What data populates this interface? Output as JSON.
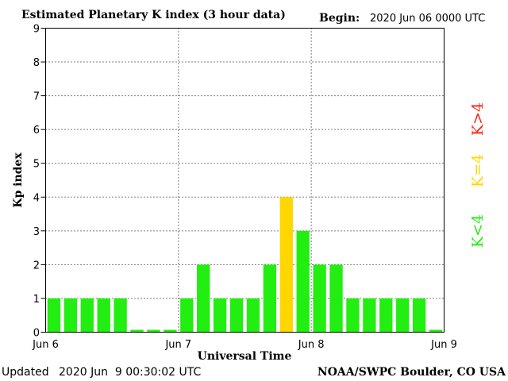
{
  "header": {
    "title": "Estimated Planetary K index (3 hour data)",
    "begin_label": "Begin:",
    "begin_value": "2020 Jun 06 0000 UTC"
  },
  "footer": {
    "updated_label": "Updated",
    "updated_value": "2020 Jun  9 00:30:02 UTC",
    "source": "NOAA/SWPC Boulder, CO USA"
  },
  "legend": {
    "above": "K>4",
    "equal": "K=4",
    "below": "K<4"
  },
  "colors": {
    "below": "#22ee11",
    "equal": "#ffd700",
    "above": "#ff2211",
    "grid": "#000000",
    "frame": "#000000"
  },
  "chart_data": {
    "type": "bar",
    "title": "Estimated Planetary K index (3 hour data)",
    "xlabel": "Universal Time",
    "ylabel": "Kp index",
    "ylim": [
      0,
      9
    ],
    "yticks": [
      0,
      1,
      2,
      3,
      4,
      5,
      6,
      7,
      8,
      9
    ],
    "xticks": [
      "Jun 6",
      "Jun 7",
      "Jun 8",
      "Jun 9"
    ],
    "bar_interval_hours": 3,
    "grid": true,
    "values": [
      1,
      1,
      1,
      1,
      1,
      0,
      0,
      0,
      1,
      2,
      1,
      1,
      1,
      2,
      4,
      3,
      2,
      2,
      1,
      1,
      1,
      1,
      1,
      0
    ]
  }
}
